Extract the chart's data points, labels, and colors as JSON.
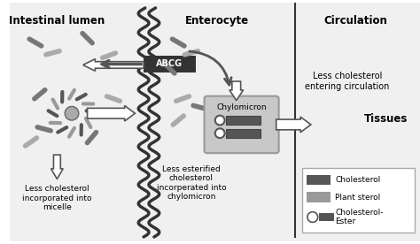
{
  "bg_color": "#f0f0f0",
  "fig_bg": "#ffffff",
  "title_intestinal": "Intestinal lumen",
  "title_enterocyte": "Enterocyte",
  "title_circulation": "Circulation",
  "label_abcg": "ABCG",
  "label_chylomicron": "Chylomicron",
  "label_tissues": "Tissues",
  "label_less_micelle": "Less cholesterol\nincorporated into\nmicelle",
  "label_less_chylomicron": "Less esterified\ncholesterol\nincorperated into\nchylomicron",
  "label_less_circulation": "Less cholesterol\nentering circulation",
  "legend_cholesterol": "Cholesterol",
  "legend_plant_sterol": "Plant sterol",
  "legend_cholesterol_ester": "Cholesterol-\nEster",
  "color_dark_gray": "#555555",
  "color_medium_gray": "#999999",
  "color_light_gray": "#cccccc",
  "color_chylomicron_bg": "#c8c8c8",
  "color_abcg_bg": "#333333",
  "color_white": "#ffffff",
  "color_black": "#000000"
}
